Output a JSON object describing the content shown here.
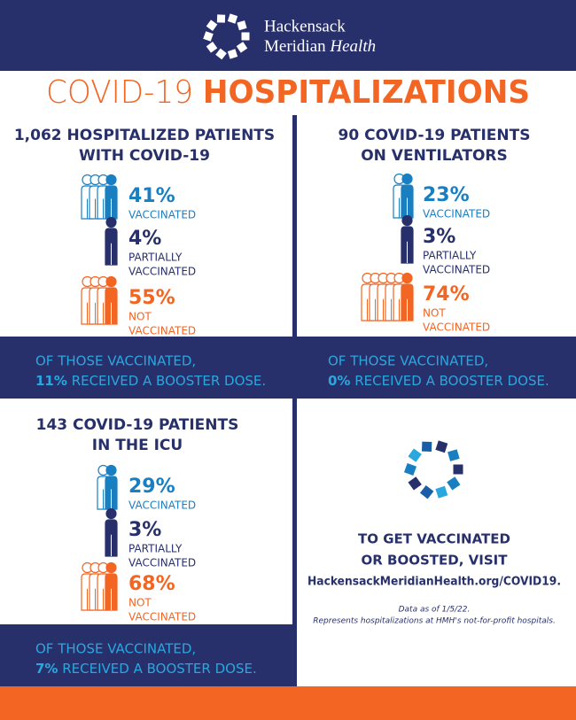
{
  "header": {
    "brand_line1": "Hackensack",
    "brand_line2": "Meridian",
    "brand_line2_italic": "Health"
  },
  "title": {
    "part1": "COVID-19",
    "part2": "HOSPITALIZATIONS"
  },
  "panels": [
    {
      "title": [
        "1,062 HOSPITALIZED PATIENTS",
        "WITH COVID-19"
      ],
      "groups": [
        {
          "percent": "41%",
          "label": [
            "VACCINATED"
          ]
        },
        {
          "percent": "4%",
          "label": [
            "PARTIALLY",
            "VACCINATED"
          ]
        },
        {
          "percent": "55%",
          "label": [
            "NOT",
            "VACCINATED"
          ]
        }
      ],
      "booster": {
        "line1": "OF THOSE VACCINATED,",
        "percent": "11%",
        "rest": "RECEIVED A BOOSTER DOSE."
      }
    },
    {
      "title": [
        "90 COVID-19 PATIENTS",
        "ON VENTILATORS"
      ],
      "groups": [
        {
          "percent": "23%",
          "label": [
            "VACCINATED"
          ]
        },
        {
          "percent": "3%",
          "label": [
            "PARTIALLY",
            "VACCINATED"
          ]
        },
        {
          "percent": "74%",
          "label": [
            "NOT",
            "VACCINATED"
          ]
        }
      ],
      "booster": {
        "line1": "OF THOSE VACCINATED,",
        "percent": "0%",
        "rest": "RECEIVED A BOOSTER DOSE."
      }
    },
    {
      "title": [
        "143 COVID-19 PATIENTS",
        "IN THE ICU"
      ],
      "groups": [
        {
          "percent": "29%",
          "label": [
            "VACCINATED"
          ]
        },
        {
          "percent": "3%",
          "label": [
            "PARTIALLY",
            "VACCINATED"
          ]
        },
        {
          "percent": "68%",
          "label": [
            "NOT",
            "VACCINATED"
          ]
        }
      ],
      "booster": {
        "line1": "OF THOSE VACCINATED,",
        "percent": "7%",
        "rest": "RECEIVED A BOOSTER DOSE."
      }
    }
  ],
  "cta": {
    "lines": [
      "TO GET VACCINATED",
      "OR BOOSTED, VISIT"
    ],
    "url": "HackensackMeridianHealth.org/COVID19."
  },
  "note": [
    "Data as of 1/5/22.",
    "Represents hospitalizations at HMH's not-for-profit hospitals."
  ]
}
